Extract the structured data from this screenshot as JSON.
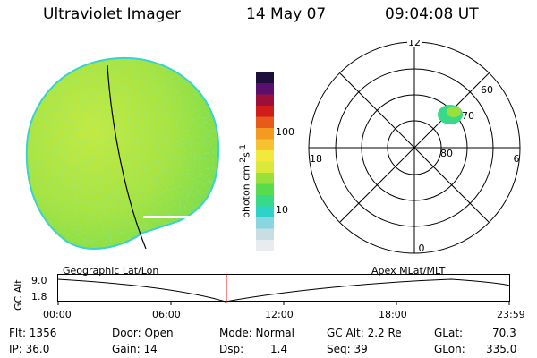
{
  "header": {
    "title": "Ultraviolet Imager",
    "date": "14 May 07",
    "time": "09:04:08 UT"
  },
  "colorbar": {
    "label": "photon cm",
    "sup1": "-2",
    "mid": "s",
    "sup2": "-1",
    "ticks": [
      "100",
      "10"
    ],
    "colors": [
      "#e8ecee",
      "#c8dde4",
      "#8ad6e0",
      "#2fd2c8",
      "#39d98a",
      "#57dc4e",
      "#9ae03a",
      "#d9e83a",
      "#f3e93c",
      "#f8c132",
      "#f59a20",
      "#e85a1a",
      "#cf1e1a",
      "#9c0f3a",
      "#5a0f6e",
      "#1c0f3a"
    ]
  },
  "polar_plot": {
    "mlt_labels": {
      "top": "12",
      "left": "18",
      "right": "6",
      "bottom": "0"
    },
    "lat_labels": [
      "60",
      "70",
      "80"
    ]
  },
  "timeline": {
    "left_label": "Geographic Lat/Lon",
    "right_label": "Apex  MLat/MLT",
    "y_axis_label": "GC Alt",
    "y_ticks": [
      "9.0",
      "1.8"
    ],
    "x_ticks": [
      "00:00",
      "06:00",
      "12:00",
      "18:00",
      "23:59"
    ],
    "marker_time": "09:04"
  },
  "status": {
    "flt": "Flt: 1356",
    "ip": "IP: 36.0",
    "door": "Door: Open",
    "gain": "Gain: 14",
    "mode": "Mode: Normal",
    "dsp_label": "Dsp:",
    "dsp_value": "1.4",
    "gc_alt": "GC Alt: 2.2 Re",
    "seq": "Seq: 39",
    "glat_label": "GLat:",
    "glat_value": "70.3",
    "glon_label": "GLon:",
    "glon_value": "335.0"
  },
  "colors": {
    "disk_base": "#aee43c",
    "disk_edge": "#37d3d0",
    "marker": "#e01010",
    "aurora": "#39d98a"
  }
}
